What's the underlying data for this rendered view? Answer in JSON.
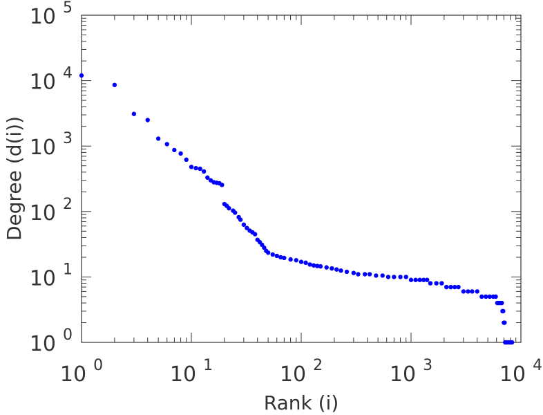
{
  "chart_data": {
    "type": "scatter",
    "title": "",
    "xlabel": "Rank (i)",
    "ylabel": "Degree (d(i))",
    "xscale": "log",
    "yscale": "log",
    "xlim": [
      1,
      10000
    ],
    "ylim": [
      1,
      100000
    ],
    "x_ticks": [
      {
        "base": "10",
        "exp": "0"
      },
      {
        "base": "10",
        "exp": "1"
      },
      {
        "base": "10",
        "exp": "2"
      },
      {
        "base": "10",
        "exp": "3"
      },
      {
        "base": "10",
        "exp": "4"
      }
    ],
    "y_ticks": [
      {
        "base": "10",
        "exp": "0"
      },
      {
        "base": "10",
        "exp": "1"
      },
      {
        "base": "10",
        "exp": "2"
      },
      {
        "base": "10",
        "exp": "3"
      },
      {
        "base": "10",
        "exp": "4"
      },
      {
        "base": "10",
        "exp": "5"
      }
    ],
    "marker_color": "#0000ff",
    "series": [
      {
        "name": "degree",
        "points": [
          [
            1,
            12000
          ],
          [
            2,
            8600
          ],
          [
            3,
            3100
          ],
          [
            4,
            2500
          ],
          [
            5,
            1300
          ],
          [
            6,
            1070
          ],
          [
            7,
            870
          ],
          [
            8,
            770
          ],
          [
            9,
            620
          ],
          [
            10,
            480
          ],
          [
            11,
            460
          ],
          [
            12,
            450
          ],
          [
            13,
            410
          ],
          [
            14,
            330
          ],
          [
            15,
            300
          ],
          [
            16,
            280
          ],
          [
            17,
            275
          ],
          [
            18,
            270
          ],
          [
            19,
            255
          ],
          [
            20,
            130
          ],
          [
            21,
            122
          ],
          [
            22,
            112
          ],
          [
            24,
            103
          ],
          [
            25,
            96
          ],
          [
            27,
            82
          ],
          [
            28,
            75
          ],
          [
            30,
            63
          ],
          [
            32,
            56
          ],
          [
            34,
            51
          ],
          [
            36,
            48
          ],
          [
            38,
            45
          ],
          [
            40,
            37
          ],
          [
            42,
            34
          ],
          [
            44,
            31
          ],
          [
            46,
            28
          ],
          [
            48,
            25
          ],
          [
            50,
            23.5
          ],
          [
            55,
            22
          ],
          [
            60,
            21
          ],
          [
            65,
            20
          ],
          [
            70,
            19.5
          ],
          [
            80,
            18.5
          ],
          [
            90,
            18
          ],
          [
            100,
            17
          ],
          [
            110,
            16.5
          ],
          [
            120,
            15.5
          ],
          [
            130,
            15
          ],
          [
            140,
            14.7
          ],
          [
            150,
            14.5
          ],
          [
            170,
            14
          ],
          [
            190,
            13.5
          ],
          [
            210,
            13
          ],
          [
            230,
            12.5
          ],
          [
            260,
            12
          ],
          [
            300,
            11.5
          ],
          [
            330,
            11
          ],
          [
            380,
            11
          ],
          [
            420,
            11
          ],
          [
            480,
            10.5
          ],
          [
            550,
            10.5
          ],
          [
            620,
            10
          ],
          [
            700,
            10
          ],
          [
            800,
            10
          ],
          [
            900,
            10
          ],
          [
            1000,
            9
          ],
          [
            1100,
            9
          ],
          [
            1200,
            9
          ],
          [
            1300,
            9
          ],
          [
            1400,
            9
          ],
          [
            1500,
            8
          ],
          [
            1700,
            8
          ],
          [
            1900,
            8
          ],
          [
            2100,
            7
          ],
          [
            2300,
            7
          ],
          [
            2500,
            7
          ],
          [
            2700,
            7
          ],
          [
            3000,
            6
          ],
          [
            3300,
            6
          ],
          [
            3600,
            6
          ],
          [
            4000,
            6
          ],
          [
            4400,
            5
          ],
          [
            4800,
            5
          ],
          [
            5200,
            5
          ],
          [
            5600,
            5
          ],
          [
            5900,
            5
          ],
          [
            6100,
            4
          ],
          [
            6300,
            4
          ],
          [
            6500,
            4
          ],
          [
            6700,
            4
          ],
          [
            6800,
            3
          ],
          [
            6900,
            3
          ],
          [
            7000,
            2
          ],
          [
            7100,
            2
          ],
          [
            7200,
            1
          ],
          [
            7400,
            1
          ],
          [
            7700,
            1
          ],
          [
            8000,
            1
          ],
          [
            8300,
            1
          ]
        ]
      }
    ]
  }
}
